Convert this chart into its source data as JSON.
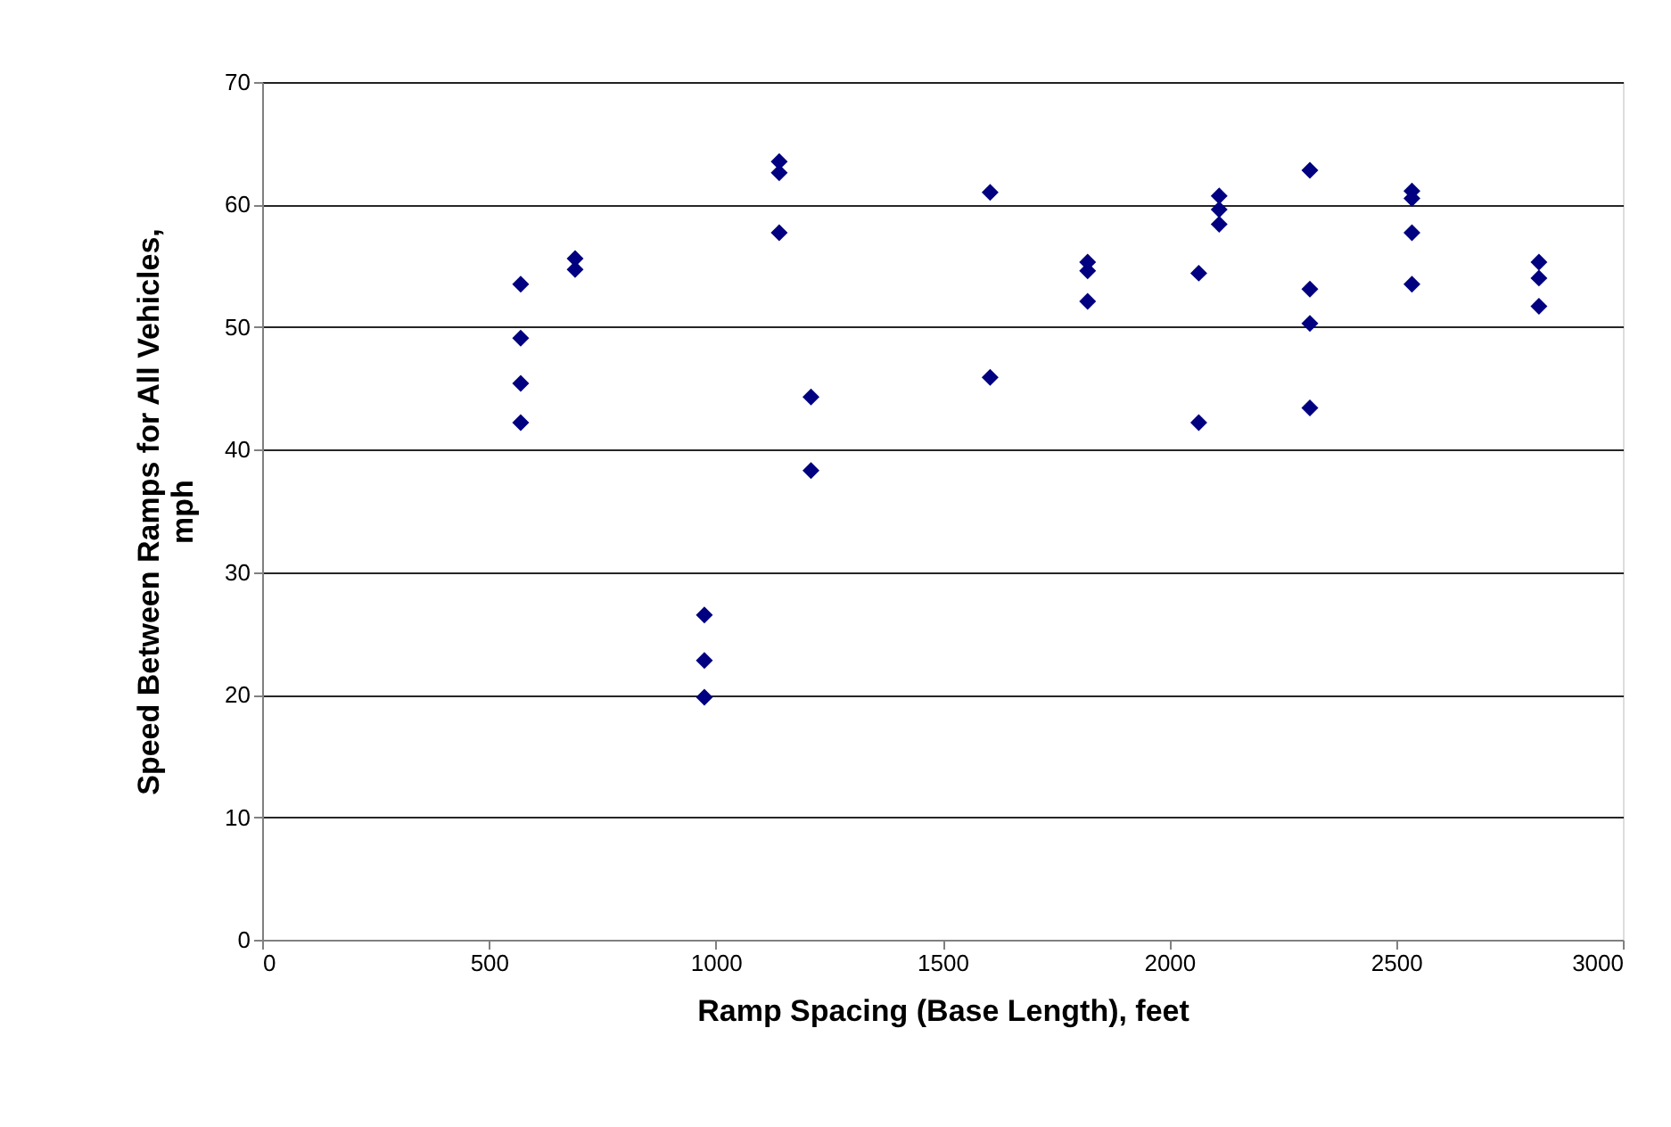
{
  "chart_data": {
    "type": "scatter",
    "xlabel": "Ramp Spacing (Base Length), feet",
    "ylabel": "Speed Between Ramps for All Vehicles,\nmph",
    "series": [
      {
        "color": "#000080",
        "x": [
          570,
          570,
          570,
          570,
          690,
          690,
          975,
          975,
          975,
          1140,
          1140,
          1140,
          1210,
          1210,
          1605,
          1605,
          1820,
          1820,
          1820,
          2065,
          2065,
          2110,
          2110,
          2110,
          2310,
          2310,
          2310,
          2310,
          2535,
          2535,
          2535,
          2535,
          2815,
          2815,
          2815
        ],
        "values": [
          53.5,
          49.1,
          45.4,
          42.2,
          55.6,
          54.7,
          26.5,
          22.8,
          19.8,
          63.5,
          62.6,
          57.7,
          44.3,
          38.3,
          61.0,
          45.9,
          55.3,
          54.6,
          52.1,
          54.4,
          42.2,
          60.7,
          59.6,
          58.4,
          62.8,
          53.1,
          50.3,
          43.4,
          61.1,
          60.5,
          57.7,
          53.5,
          55.3,
          54.0,
          51.7
        ]
      }
    ],
    "xlim": [
      0,
      3000
    ],
    "xticks": [
      0,
      500,
      1000,
      1500,
      2000,
      2500,
      3000
    ],
    "ylim": [
      0,
      70
    ],
    "yticks": [
      0,
      10,
      20,
      30,
      40,
      50,
      60,
      70
    ],
    "grid": "y",
    "marker": "diamond"
  }
}
